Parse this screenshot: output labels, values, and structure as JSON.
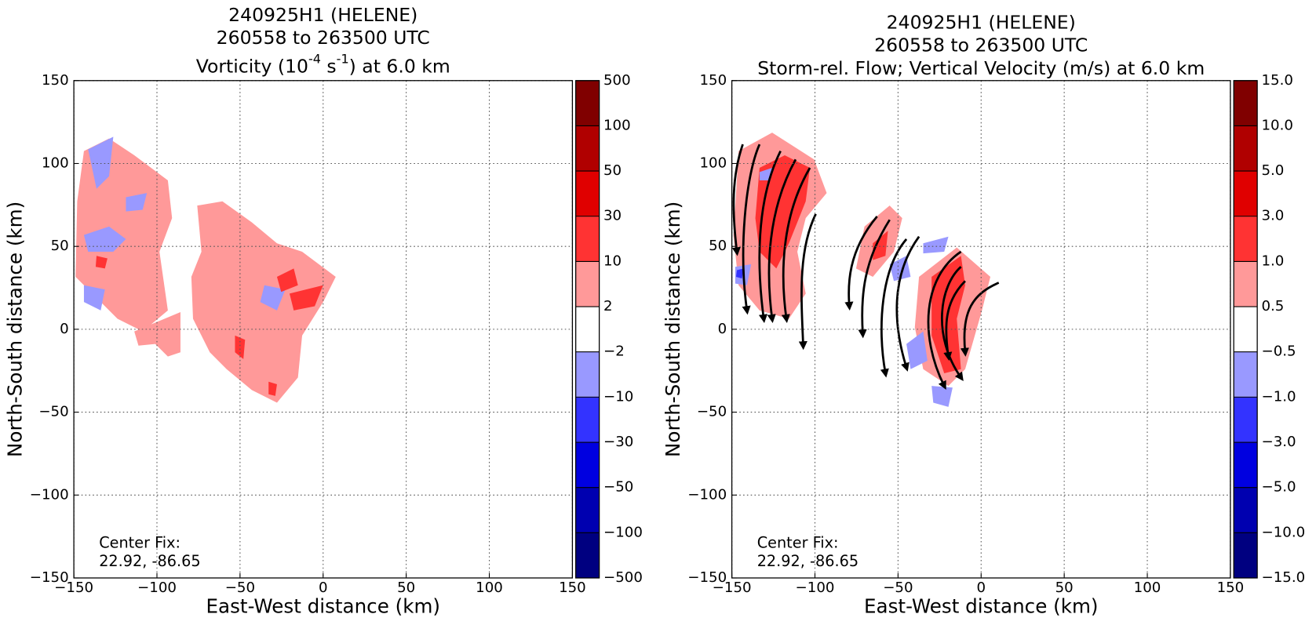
{
  "chart_data": [
    {
      "type": "contour",
      "title": [
        "240925H1 (HELENE)",
        "260558 to 263500 UTC"
      ],
      "subtitle": [
        {
          "text": "Vorticity (10"
        },
        {
          "text": "-4",
          "sup": true
        },
        {
          "text": " s"
        },
        {
          "text": "-1",
          "sup": true
        },
        {
          "text": ") at 6.0 km"
        }
      ],
      "xlabel": "East-West distance (km)",
      "ylabel": "North-South distance (km)",
      "xlim": [
        -150,
        150
      ],
      "ylim": [
        -150,
        150
      ],
      "xticks": [
        {
          "value": -150,
          "label": "−150"
        },
        {
          "value": -100,
          "label": "−100"
        },
        {
          "value": -50,
          "label": "−50"
        },
        0,
        50,
        100,
        150
      ],
      "yticks": [
        {
          "value": -150,
          "label": "−150"
        },
        {
          "value": -100,
          "label": "−100"
        },
        {
          "value": -50,
          "label": "−50"
        },
        0,
        50,
        100,
        150
      ],
      "grid": true,
      "annotation": [
        "Center Fix:",
        "22.92, -86.65"
      ],
      "colorbar": {
        "levels": [
          {
            "value": -500,
            "label": "−500"
          },
          {
            "value": -100,
            "label": "−100"
          },
          {
            "value": -50,
            "label": "−50"
          },
          {
            "value": -30,
            "label": "−30"
          },
          {
            "value": -10,
            "label": "−10"
          },
          {
            "value": -2,
            "label": "−2"
          },
          2,
          10,
          30,
          50,
          100,
          500
        ],
        "colors": [
          "#000080",
          "#0000b0",
          "#0000e0",
          "#3333ff",
          "#9999ff",
          "#ffffff",
          "#ff9999",
          "#ff3333",
          "#e00000",
          "#b00000",
          "#800000"
        ]
      }
    },
    {
      "type": "contour",
      "title": [
        "240925H1 (HELENE)",
        "260558 to 263500 UTC"
      ],
      "subtitle": [
        {
          "text": "Storm-rel. Flow; Vertical Velocity (m/s) at 6.0 km"
        }
      ],
      "xlabel": "East-West distance (km)",
      "ylabel": "North-South distance (km)",
      "xlim": [
        -150,
        150
      ],
      "ylim": [
        -150,
        150
      ],
      "xticks": [
        {
          "value": -150,
          "label": "−150"
        },
        {
          "value": -100,
          "label": "−100"
        },
        {
          "value": -50,
          "label": "−50"
        },
        0,
        50,
        100,
        150
      ],
      "yticks": [
        {
          "value": -150,
          "label": "−150"
        },
        {
          "value": -100,
          "label": "−100"
        },
        {
          "value": -50,
          "label": "−50"
        },
        0,
        50,
        100,
        150
      ],
      "grid": true,
      "annotation": [
        "Center Fix:",
        "22.92, -86.65"
      ],
      "colorbar": {
        "levels": [
          {
            "value": -15,
            "label": "−15.0"
          },
          {
            "value": -10,
            "label": "−10.0"
          },
          {
            "value": -5,
            "label": "−5.0"
          },
          {
            "value": -3,
            "label": "−3.0"
          },
          {
            "value": -1,
            "label": "−1.0"
          },
          {
            "value": -0.5,
            "label": "−0.5"
          },
          {
            "value": 0.5,
            "label": "0.5"
          },
          {
            "value": 1,
            "label": "1.0"
          },
          {
            "value": 3,
            "label": "3.0"
          },
          {
            "value": 5,
            "label": "5.0"
          },
          {
            "value": 10,
            "label": "10.0"
          },
          {
            "value": 15,
            "label": "15.0"
          }
        ],
        "colors": [
          "#000080",
          "#0000b0",
          "#0000e0",
          "#3333ff",
          "#9999ff",
          "#ffffff",
          "#ff9999",
          "#ff3333",
          "#e00000",
          "#b00000",
          "#800000"
        ]
      }
    }
  ]
}
